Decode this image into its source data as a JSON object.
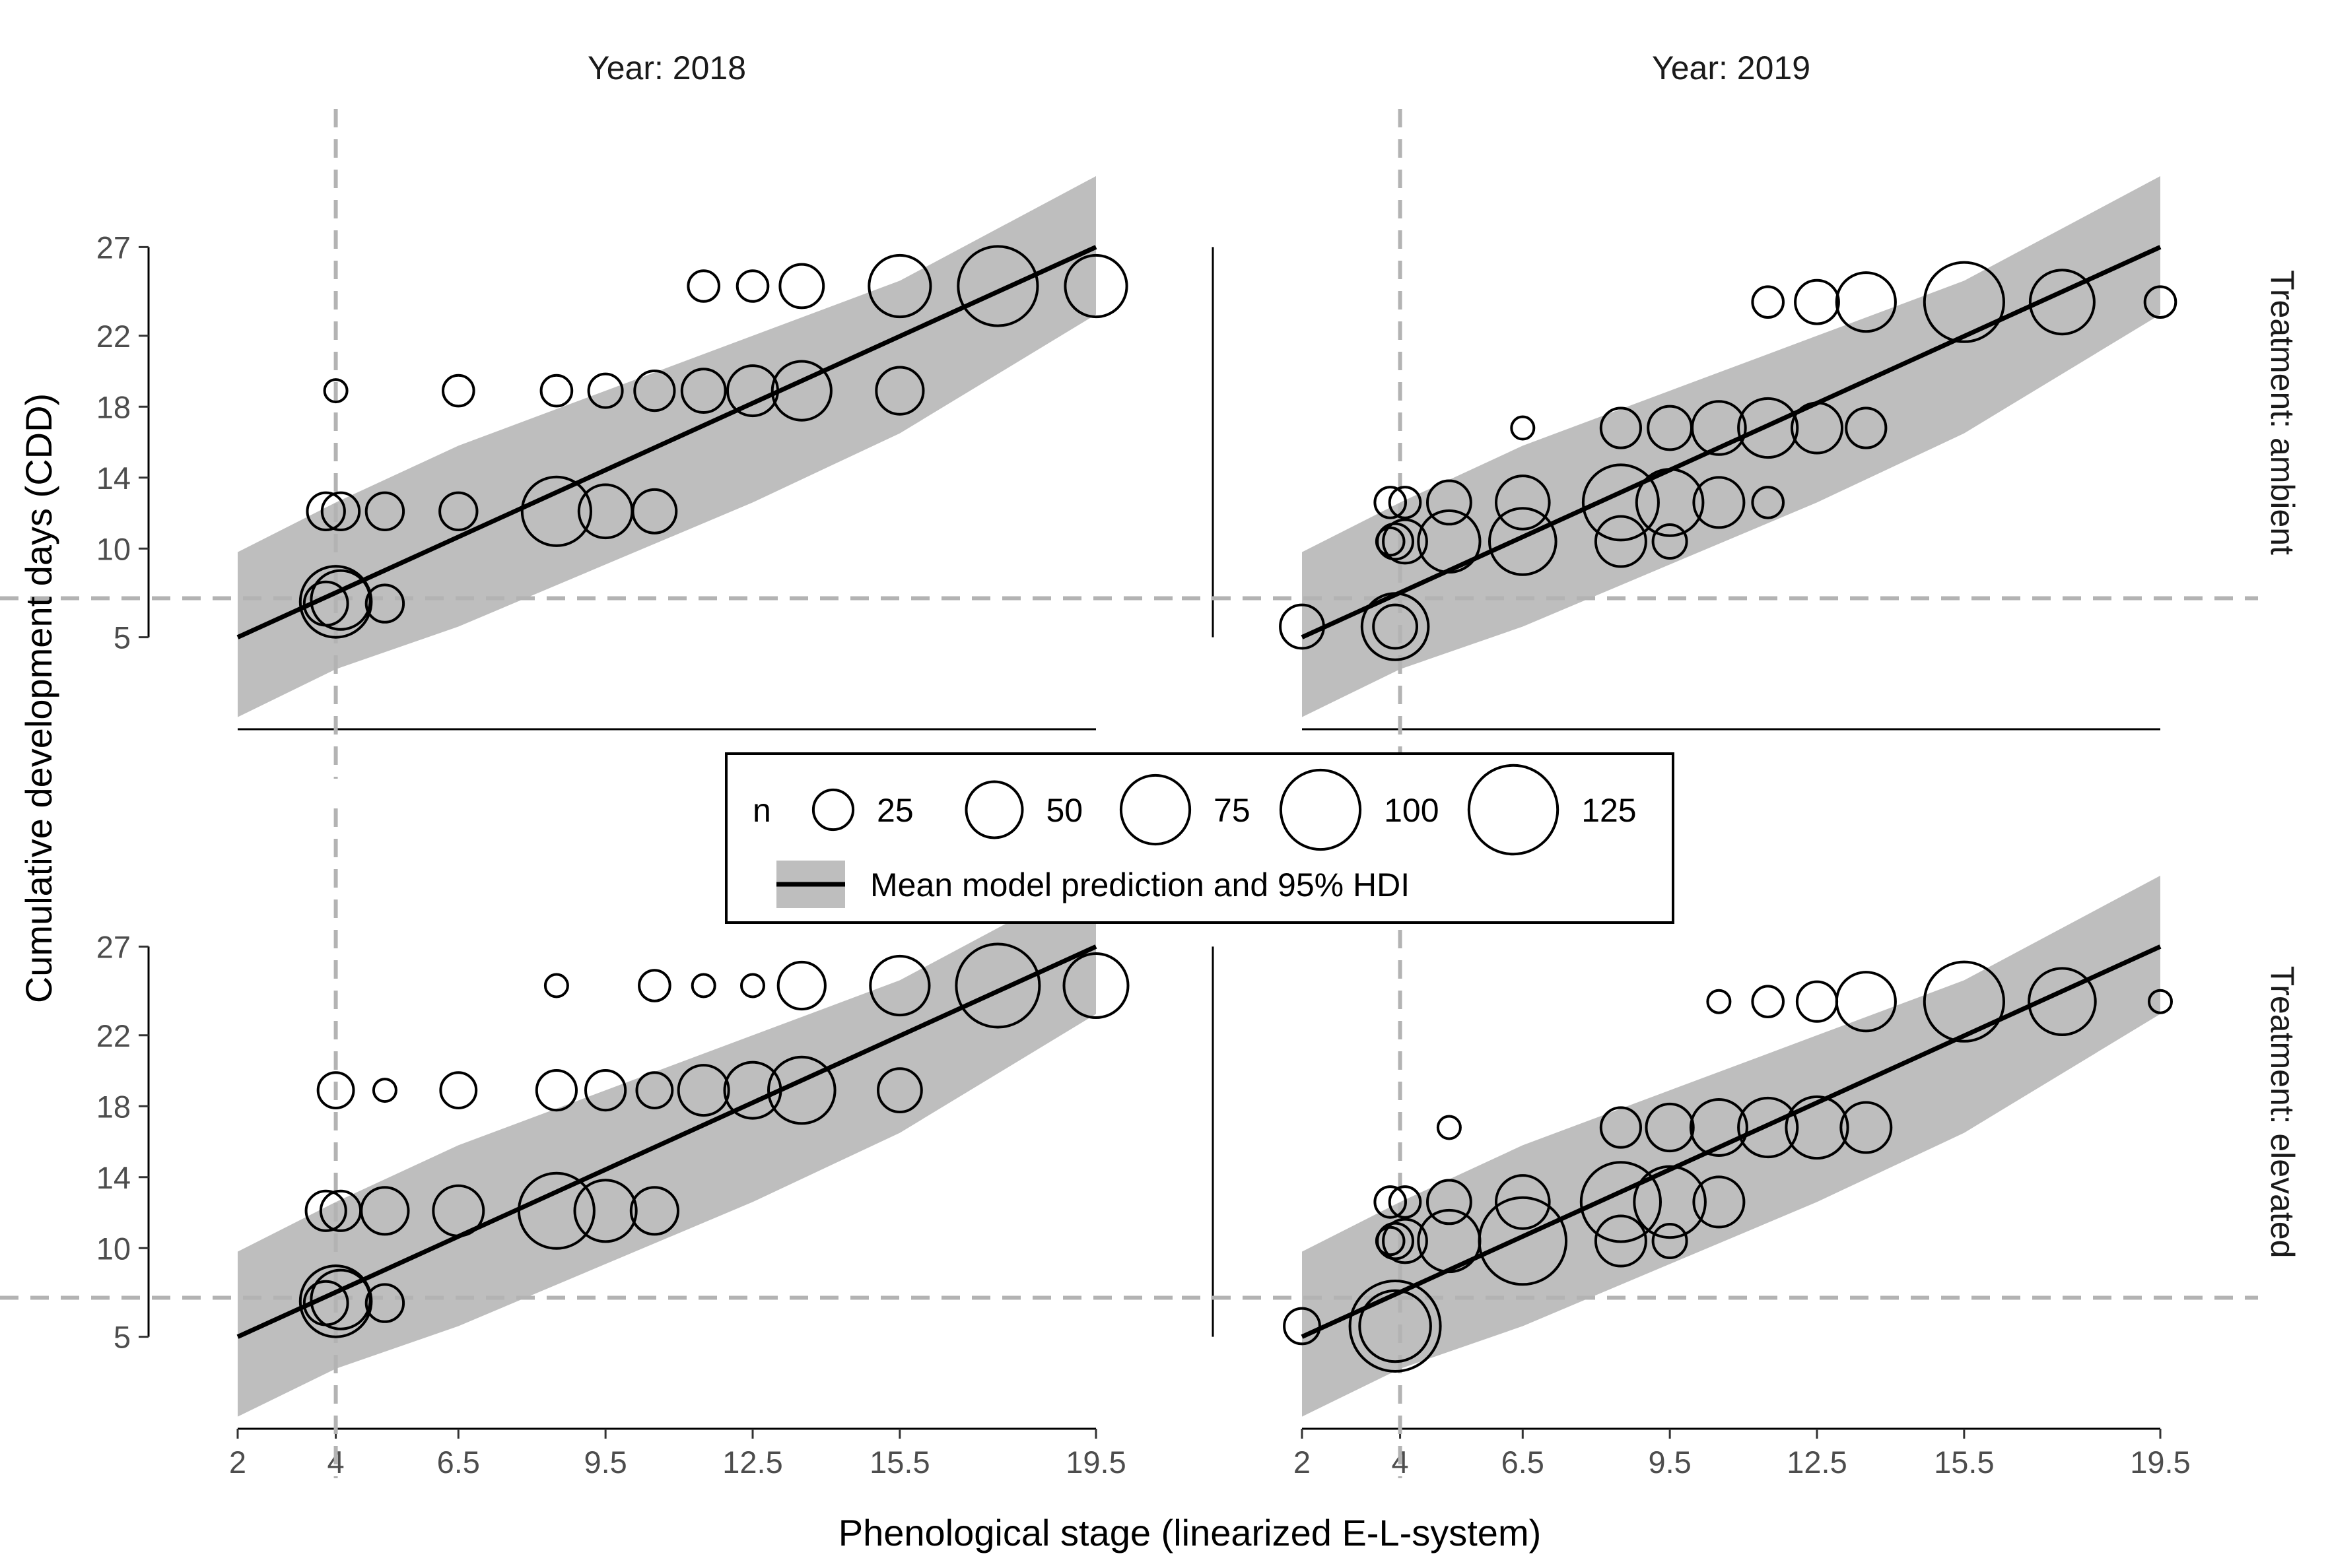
{
  "chart_data": {
    "type": "scatter",
    "title": "",
    "xlabel": "Phenological stage (linearized E-L-system)",
    "ylabel": "Cumulative development days (CDD)",
    "x_ticks": [
      "2",
      "4",
      "6.5",
      "9.5",
      "12.5",
      "15.5",
      "19.5"
    ],
    "x_tick_values": [
      2,
      4,
      6.5,
      9.5,
      12.5,
      15.5,
      19.5
    ],
    "y_ticks": [
      "5",
      "10",
      "14",
      "18",
      "22",
      "27"
    ],
    "y_tick_values": [
      5,
      10,
      14,
      18,
      22,
      27
    ],
    "xlim": [
      1.5,
      21.5
    ],
    "ylim": [
      0,
      32
    ],
    "col_strips": [
      "Year: 2018",
      "Year: 2019"
    ],
    "row_strips": [
      "Treatment: ambient",
      "Treatment: elevated"
    ],
    "reference_lines": {
      "x": 4,
      "y": 7.2
    },
    "legend": {
      "size_title": "n",
      "size_breaks": [
        25,
        50,
        75,
        100,
        125
      ],
      "size_labels": [
        "25",
        "50",
        "75",
        "100",
        "125"
      ],
      "line_label": "Mean model prediction and 95% HDI"
    },
    "colors": {
      "band": "#bebebe",
      "line": "#000000",
      "ref_line": "#b3b3b3",
      "point": "#000000"
    },
    "model": {
      "mean": {
        "x": [
          2,
          19.5
        ],
        "y": [
          5,
          27
        ]
      },
      "band_x": [
        2,
        4,
        6.5,
        9.5,
        12.5,
        15.5,
        19.5
      ],
      "band_lower": [
        0.5,
        3.2,
        5.6,
        9.1,
        12.6,
        16.5,
        23.2
      ],
      "band_upper": [
        9.8,
        12.6,
        15.8,
        18.9,
        22.0,
        25.1,
        31.0
      ]
    },
    "panels": [
      {
        "year": "Year: 2018",
        "treatment": "Treatment: ambient",
        "points": [
          {
            "x": 4,
            "y": 7.0,
            "n": 80
          },
          {
            "x": 3.8,
            "y": 6.9,
            "n": 30
          },
          {
            "x": 4.1,
            "y": 7.1,
            "n": 55
          },
          {
            "x": 5,
            "y": 6.9,
            "n": 22
          },
          {
            "x": 3.8,
            "y": 12.1,
            "n": 22
          },
          {
            "x": 4.1,
            "y": 12.1,
            "n": 22
          },
          {
            "x": 5,
            "y": 12.1,
            "n": 22
          },
          {
            "x": 6.5,
            "y": 12.1,
            "n": 22
          },
          {
            "x": 8.5,
            "y": 12.1,
            "n": 75
          },
          {
            "x": 9.5,
            "y": 12.1,
            "n": 45
          },
          {
            "x": 10.5,
            "y": 12.1,
            "n": 30
          },
          {
            "x": 4,
            "y": 18.9,
            "n": 8
          },
          {
            "x": 6.5,
            "y": 18.9,
            "n": 15
          },
          {
            "x": 8.5,
            "y": 18.9,
            "n": 15
          },
          {
            "x": 9.5,
            "y": 18.9,
            "n": 18
          },
          {
            "x": 10.5,
            "y": 18.9,
            "n": 25
          },
          {
            "x": 11.5,
            "y": 18.9,
            "n": 30
          },
          {
            "x": 12.5,
            "y": 18.9,
            "n": 40
          },
          {
            "x": 13.5,
            "y": 18.9,
            "n": 55
          },
          {
            "x": 15.5,
            "y": 18.9,
            "n": 35
          },
          {
            "x": 11.5,
            "y": 24.8,
            "n": 15
          },
          {
            "x": 12.5,
            "y": 24.8,
            "n": 15
          },
          {
            "x": 13.5,
            "y": 24.8,
            "n": 30
          },
          {
            "x": 15.5,
            "y": 24.8,
            "n": 60
          },
          {
            "x": 17.5,
            "y": 24.8,
            "n": 100
          },
          {
            "x": 19.5,
            "y": 24.8,
            "n": 60
          }
        ]
      },
      {
        "year": "Year: 2019",
        "treatment": "Treatment: ambient",
        "points": [
          {
            "x": 2,
            "y": 5.6,
            "n": 30
          },
          {
            "x": 3.9,
            "y": 5.6,
            "n": 70
          },
          {
            "x": 3.9,
            "y": 5.6,
            "n": 30
          },
          {
            "x": 3.8,
            "y": 10.4,
            "n": 12
          },
          {
            "x": 3.9,
            "y": 10.4,
            "n": 20
          },
          {
            "x": 4.1,
            "y": 10.4,
            "n": 30
          },
          {
            "x": 5,
            "y": 10.4,
            "n": 60
          },
          {
            "x": 6.5,
            "y": 10.4,
            "n": 70
          },
          {
            "x": 8.5,
            "y": 10.4,
            "n": 40
          },
          {
            "x": 9.5,
            "y": 10.4,
            "n": 18
          },
          {
            "x": 3.8,
            "y": 12.6,
            "n": 15
          },
          {
            "x": 4.1,
            "y": 12.6,
            "n": 15
          },
          {
            "x": 5,
            "y": 12.6,
            "n": 30
          },
          {
            "x": 6.5,
            "y": 12.6,
            "n": 45
          },
          {
            "x": 8.5,
            "y": 12.6,
            "n": 90
          },
          {
            "x": 9.5,
            "y": 12.6,
            "n": 70
          },
          {
            "x": 10.5,
            "y": 12.6,
            "n": 40
          },
          {
            "x": 11.5,
            "y": 12.6,
            "n": 15
          },
          {
            "x": 6.5,
            "y": 16.8,
            "n": 8
          },
          {
            "x": 8.5,
            "y": 16.8,
            "n": 25
          },
          {
            "x": 9.5,
            "y": 16.8,
            "n": 30
          },
          {
            "x": 10.5,
            "y": 16.8,
            "n": 45
          },
          {
            "x": 11.5,
            "y": 16.8,
            "n": 55
          },
          {
            "x": 12.5,
            "y": 16.8,
            "n": 40
          },
          {
            "x": 13.5,
            "y": 16.8,
            "n": 25
          },
          {
            "x": 11.5,
            "y": 23.9,
            "n": 15
          },
          {
            "x": 12.5,
            "y": 23.9,
            "n": 30
          },
          {
            "x": 13.5,
            "y": 23.9,
            "n": 55
          },
          {
            "x": 15.5,
            "y": 23.9,
            "n": 100
          },
          {
            "x": 17.5,
            "y": 23.9,
            "n": 65
          },
          {
            "x": 19.5,
            "y": 23.9,
            "n": 15
          }
        ]
      },
      {
        "year": "Year: 2018",
        "treatment": "Treatment: elevated",
        "points": [
          {
            "x": 4,
            "y": 7.0,
            "n": 80
          },
          {
            "x": 3.8,
            "y": 6.9,
            "n": 30
          },
          {
            "x": 4.1,
            "y": 7.1,
            "n": 55
          },
          {
            "x": 5,
            "y": 6.9,
            "n": 22
          },
          {
            "x": 3.8,
            "y": 12.1,
            "n": 25
          },
          {
            "x": 4.1,
            "y": 12.1,
            "n": 25
          },
          {
            "x": 5,
            "y": 12.1,
            "n": 35
          },
          {
            "x": 6.5,
            "y": 12.1,
            "n": 40
          },
          {
            "x": 8.5,
            "y": 12.1,
            "n": 90
          },
          {
            "x": 9.5,
            "y": 12.1,
            "n": 60
          },
          {
            "x": 10.5,
            "y": 12.1,
            "n": 35
          },
          {
            "x": 4,
            "y": 18.9,
            "n": 20
          },
          {
            "x": 5,
            "y": 18.9,
            "n": 8
          },
          {
            "x": 6.5,
            "y": 18.9,
            "n": 20
          },
          {
            "x": 8.5,
            "y": 18.9,
            "n": 25
          },
          {
            "x": 9.5,
            "y": 18.9,
            "n": 25
          },
          {
            "x": 10.5,
            "y": 18.9,
            "n": 20
          },
          {
            "x": 11.5,
            "y": 18.9,
            "n": 40
          },
          {
            "x": 12.5,
            "y": 18.9,
            "n": 50
          },
          {
            "x": 13.5,
            "y": 18.9,
            "n": 70
          },
          {
            "x": 15.5,
            "y": 18.9,
            "n": 30
          },
          {
            "x": 8.5,
            "y": 24.8,
            "n": 8
          },
          {
            "x": 10.5,
            "y": 24.8,
            "n": 15
          },
          {
            "x": 11.5,
            "y": 24.8,
            "n": 8
          },
          {
            "x": 12.5,
            "y": 24.8,
            "n": 8
          },
          {
            "x": 13.5,
            "y": 24.8,
            "n": 35
          },
          {
            "x": 15.5,
            "y": 24.8,
            "n": 55
          },
          {
            "x": 17.5,
            "y": 24.8,
            "n": 110
          },
          {
            "x": 19.5,
            "y": 24.8,
            "n": 65
          }
        ]
      },
      {
        "year": "Year: 2019",
        "treatment": "Treatment: elevated",
        "points": [
          {
            "x": 2,
            "y": 5.6,
            "n": 20
          },
          {
            "x": 3.9,
            "y": 5.6,
            "n": 130
          },
          {
            "x": 3.9,
            "y": 5.6,
            "n": 80
          },
          {
            "x": 3.8,
            "y": 10.4,
            "n": 12
          },
          {
            "x": 3.9,
            "y": 10.4,
            "n": 20
          },
          {
            "x": 4.1,
            "y": 10.4,
            "n": 30
          },
          {
            "x": 5,
            "y": 10.4,
            "n": 60
          },
          {
            "x": 6.5,
            "y": 10.4,
            "n": 120
          },
          {
            "x": 8.5,
            "y": 10.4,
            "n": 40
          },
          {
            "x": 9.5,
            "y": 10.4,
            "n": 18
          },
          {
            "x": 3.8,
            "y": 12.6,
            "n": 15
          },
          {
            "x": 4.1,
            "y": 12.6,
            "n": 15
          },
          {
            "x": 5,
            "y": 12.6,
            "n": 30
          },
          {
            "x": 6.5,
            "y": 12.6,
            "n": 45
          },
          {
            "x": 8.5,
            "y": 12.6,
            "n": 100
          },
          {
            "x": 9.5,
            "y": 12.6,
            "n": 80
          },
          {
            "x": 10.5,
            "y": 12.6,
            "n": 40
          },
          {
            "x": 5,
            "y": 16.8,
            "n": 8
          },
          {
            "x": 8.5,
            "y": 16.8,
            "n": 25
          },
          {
            "x": 9.5,
            "y": 16.8,
            "n": 35
          },
          {
            "x": 10.5,
            "y": 16.8,
            "n": 50
          },
          {
            "x": 11.5,
            "y": 16.8,
            "n": 55
          },
          {
            "x": 12.5,
            "y": 16.8,
            "n": 60
          },
          {
            "x": 13.5,
            "y": 16.8,
            "n": 40
          },
          {
            "x": 10.5,
            "y": 23.9,
            "n": 8
          },
          {
            "x": 11.5,
            "y": 23.9,
            "n": 15
          },
          {
            "x": 12.5,
            "y": 23.9,
            "n": 25
          },
          {
            "x": 13.5,
            "y": 23.9,
            "n": 55
          },
          {
            "x": 15.5,
            "y": 23.9,
            "n": 100
          },
          {
            "x": 17.5,
            "y": 23.9,
            "n": 70
          },
          {
            "x": 19.5,
            "y": 23.9,
            "n": 8
          }
        ]
      }
    ]
  }
}
